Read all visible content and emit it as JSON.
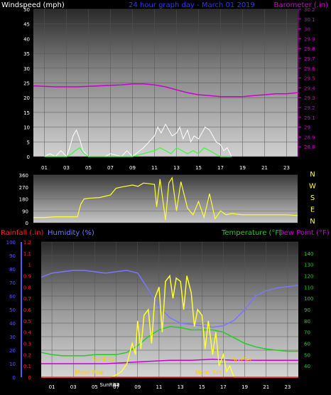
{
  "colors": {
    "bg": "#000000",
    "wind_label": "#ffffff",
    "title": "#3333ff",
    "barometer": "#cc00cc",
    "gust": "#ffffff",
    "wind_avg": "#33ff33",
    "direction": "#ffff33",
    "rainfall": "#ff2222",
    "humidity": "#7777ff",
    "temperature": "#22cc22",
    "dewpoint": "#cc00cc",
    "solar": "#ffff33",
    "sun_label": "#ffcc00",
    "tick": "#ffffff",
    "left_axis_blue": "#5555ff",
    "temp_axis": "#22cc22"
  },
  "chart_data": [
    {
      "type": "line",
      "title": "24 hour graph day - March 01 2019",
      "ylabel": "Windspeed (mph)",
      "y2label": "Barometer (.in)",
      "xticks": [
        "01",
        "03",
        "05",
        "07",
        "09",
        "11",
        "13",
        "15",
        "17",
        "19",
        "21",
        "23"
      ],
      "ylim": [
        0,
        50
      ],
      "yticks": [
        "0",
        "5",
        "10",
        "15",
        "20",
        "25",
        "30",
        "35",
        "40",
        "45",
        "50"
      ],
      "y2lim": [
        28.7,
        30.2
      ],
      "y2ticks": [
        "28.8",
        "28.9",
        "29",
        "29.1",
        "29.2",
        "29.3",
        "29.4",
        "29.5",
        "29.6",
        "29.7",
        "29.8",
        "29.9",
        "30",
        "30.1",
        "30.2"
      ],
      "series": [
        {
          "name": "Barometer",
          "axis": "right",
          "x": [
            0,
            2,
            4,
            6,
            8,
            9,
            10,
            11,
            12,
            13,
            14,
            15,
            16,
            17,
            18,
            19,
            20,
            21,
            22,
            23,
            24
          ],
          "y": [
            29.42,
            29.41,
            29.41,
            29.42,
            29.43,
            29.44,
            29.44,
            29.43,
            29.41,
            29.38,
            29.35,
            29.33,
            29.32,
            29.31,
            29.31,
            29.31,
            29.32,
            29.33,
            29.34,
            29.34,
            29.35
          ]
        },
        {
          "name": "Gust",
          "axis": "left",
          "x": [
            1,
            1.5,
            2,
            2.5,
            3,
            3.3,
            3.6,
            3.9,
            4.2,
            4.5,
            5,
            6.5,
            7,
            8,
            8.5,
            9,
            10,
            10.5,
            11,
            11.3,
            11.6,
            12,
            12.3,
            12.6,
            13,
            13.3,
            13.6,
            14,
            14.3,
            14.6,
            15,
            15.3,
            15.6,
            16,
            16.3,
            16.6,
            17,
            17.3,
            17.6,
            18
          ],
          "y": [
            0,
            1,
            0,
            2,
            0,
            3,
            7,
            9,
            6,
            2,
            0,
            0,
            1,
            0,
            2,
            0,
            3,
            5,
            7,
            10,
            8,
            11,
            9,
            7,
            8,
            10,
            6,
            9,
            5,
            7,
            6,
            8,
            10,
            9,
            7,
            5,
            4,
            2,
            3,
            0
          ]
        },
        {
          "name": "Wind",
          "axis": "left",
          "x": [
            1,
            3,
            3.5,
            3.8,
            4.2,
            4.6,
            5,
            9,
            10,
            11,
            11.5,
            12,
            12.5,
            13,
            13.5,
            14,
            14.5,
            15,
            15.5,
            16,
            16.5,
            17,
            18
          ],
          "y": [
            0,
            0,
            1,
            2,
            3,
            1,
            0,
            0,
            1,
            2,
            3,
            2,
            1,
            3,
            2,
            1,
            2,
            1,
            3,
            2,
            1,
            0,
            0
          ]
        }
      ]
    },
    {
      "type": "line",
      "ylabel": "",
      "ylim": [
        0,
        360
      ],
      "yticks": [
        "0",
        "90",
        "180",
        "270",
        "360"
      ],
      "compass": [
        "N",
        "W",
        "S",
        "E",
        "N"
      ],
      "series": [
        {
          "name": "Wind Direction",
          "x": [
            0,
            1,
            2,
            3,
            4,
            4.3,
            4.6,
            5,
            6,
            7,
            7.5,
            8,
            9,
            9.5,
            10,
            11,
            11.2,
            11.5,
            12,
            12.3,
            12.6,
            13,
            13.4,
            14,
            14.5,
            15,
            15.5,
            16,
            16.5,
            17,
            17.5,
            18,
            19,
            20,
            21,
            22,
            23,
            24
          ],
          "y": [
            40,
            40,
            45,
            45,
            45,
            140,
            180,
            185,
            190,
            210,
            260,
            270,
            285,
            275,
            300,
            290,
            120,
            330,
            20,
            300,
            340,
            90,
            310,
            110,
            60,
            160,
            40,
            220,
            30,
            90,
            60,
            70,
            60,
            60,
            60,
            60,
            60,
            55
          ]
        }
      ]
    },
    {
      "type": "line",
      "ylabel": "Humidity (%)",
      "y0label": "Rainfall (.in)",
      "y2label": "Temperature (°F)",
      "y3label": "Dew Point (°F)",
      "xticks": [
        "01",
        "03",
        "05",
        "07",
        "09",
        "11",
        "13",
        "15",
        "17",
        "19",
        "21",
        "23"
      ],
      "humidity_lim": [
        0,
        100
      ],
      "humidity_ticks": [
        "0",
        "10",
        "20",
        "30",
        "40",
        "50",
        "60",
        "70",
        "80",
        "90",
        "100"
      ],
      "rain_lim": [
        0,
        1.2
      ],
      "rain_ticks": [
        "0",
        "0.1",
        "0.2",
        "0.3",
        "0.4",
        "0.5",
        "0.6",
        "0.7",
        "0.8",
        "0.9",
        "1",
        "1.1",
        "1.2"
      ],
      "temp_lim": [
        30,
        150
      ],
      "temp_ticks": [
        "40",
        "50",
        "60",
        "70",
        "80",
        "90",
        "100",
        "110",
        "120",
        "130",
        "140"
      ],
      "annotations": [
        {
          "label": "SunRise",
          "x": 6.9
        },
        {
          "label": "SunSet",
          "x": 17.8
        },
        {
          "label": "Moon Rise",
          "x": 4.5
        },
        {
          "label": "Moon Set",
          "x": 15.6
        }
      ],
      "bottom_labels": [
        {
          "label": "SunRise",
          "x": 6.4
        },
        {
          "label": "67",
          "x": 7.0
        }
      ],
      "series": [
        {
          "name": "Humidity",
          "axis": "humidity",
          "x": [
            0,
            1,
            2,
            3,
            4,
            5,
            6,
            7,
            8,
            9,
            10,
            11,
            12,
            13,
            14,
            15,
            16,
            17,
            18,
            19,
            20,
            21,
            22,
            23,
            24
          ],
          "y": [
            74,
            77,
            78,
            79,
            79,
            78,
            77,
            78,
            79,
            77,
            65,
            52,
            44,
            40,
            39,
            38,
            37,
            38,
            42,
            50,
            60,
            64,
            66,
            67,
            68
          ]
        },
        {
          "name": "Temperature",
          "axis": "temp",
          "x": [
            0,
            1,
            2,
            3,
            4,
            5,
            6,
            7,
            8,
            9,
            10,
            11,
            12,
            13,
            14,
            15,
            16,
            17,
            18,
            19,
            20,
            21,
            22,
            23,
            24
          ],
          "y": [
            52,
            50,
            49,
            49,
            49,
            50,
            50,
            50,
            52,
            58,
            66,
            72,
            75,
            74,
            72,
            72,
            72,
            70,
            65,
            60,
            57,
            55,
            54,
            53,
            53
          ]
        },
        {
          "name": "Dew Point",
          "axis": "temp",
          "x": [
            0,
            2,
            4,
            6,
            8,
            10,
            12,
            14,
            16,
            18,
            20,
            22,
            24
          ],
          "y": [
            42,
            42,
            42,
            42,
            43,
            44,
            45,
            45,
            46,
            45,
            45,
            45,
            45
          ]
        },
        {
          "name": "Solar",
          "axis": "rain",
          "x": [
            0,
            6.5,
            7,
            7.5,
            8,
            8.5,
            8.8,
            9,
            9.3,
            9.6,
            10,
            10.3,
            10.6,
            11,
            11.3,
            11.6,
            12,
            12.3,
            12.6,
            13,
            13.3,
            13.6,
            14,
            14.3,
            14.6,
            15,
            15.3,
            15.6,
            16,
            16.3,
            16.6,
            17,
            17.3,
            17.6,
            18,
            24
          ],
          "y": [
            0,
            0,
            0.02,
            0.05,
            0.12,
            0.3,
            0.2,
            0.5,
            0.25,
            0.55,
            0.6,
            0.3,
            0.7,
            0.8,
            0.4,
            0.85,
            0.9,
            0.7,
            0.88,
            0.85,
            0.6,
            0.9,
            0.75,
            0.45,
            0.6,
            0.55,
            0.25,
            0.5,
            0.2,
            0.4,
            0.1,
            0.2,
            0.05,
            0.1,
            0,
            0
          ]
        },
        {
          "name": "Rainfall",
          "axis": "rain",
          "x": [
            0,
            24
          ],
          "y": [
            0,
            0
          ]
        }
      ]
    }
  ]
}
